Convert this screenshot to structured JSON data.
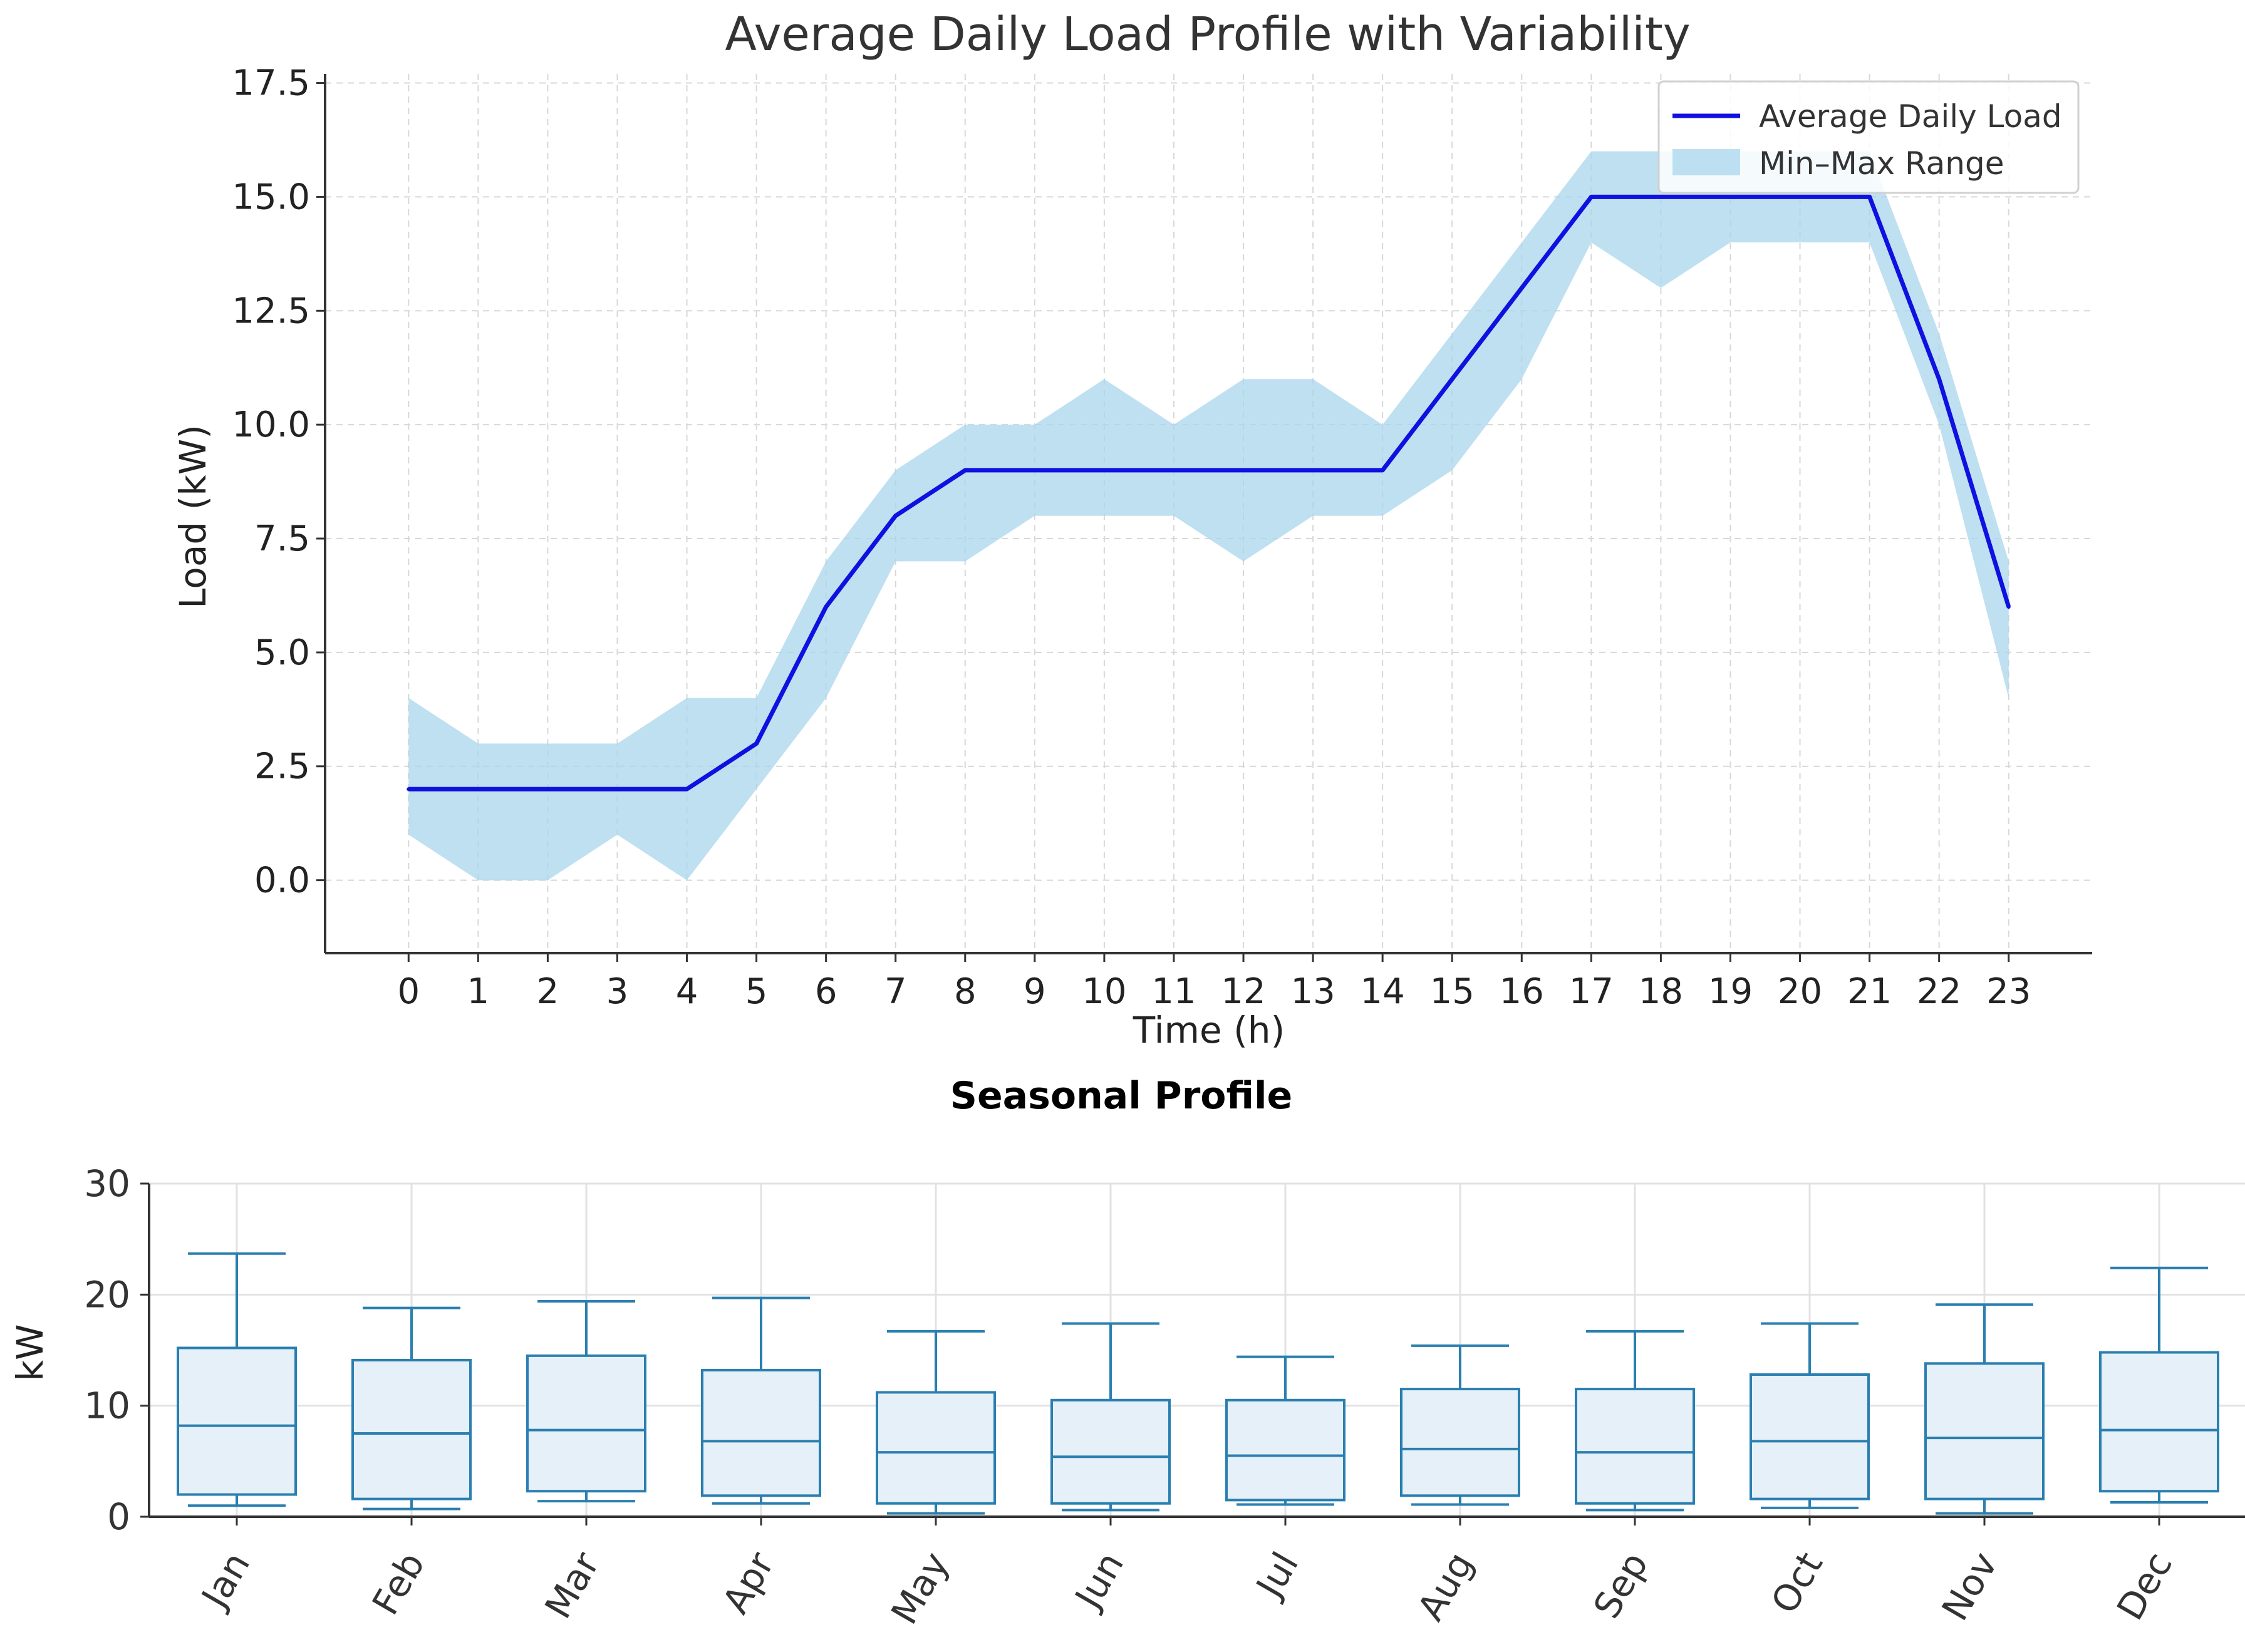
{
  "chart_data": [
    {
      "type": "line",
      "title": "Average Daily Load Profile with Variability",
      "xlabel": "Time (h)",
      "ylabel": "Load (kW)",
      "xlim": [
        -1.2,
        24.2
      ],
      "ylim": [
        -1.6,
        17.7
      ],
      "x": [
        0,
        1,
        2,
        3,
        4,
        5,
        6,
        7,
        8,
        9,
        10,
        11,
        12,
        13,
        14,
        15,
        16,
        17,
        18,
        19,
        20,
        21,
        22,
        23
      ],
      "x_tick_labels": [
        "0",
        "1",
        "2",
        "3",
        "4",
        "5",
        "6",
        "7",
        "8",
        "9",
        "10",
        "11",
        "12",
        "13",
        "14",
        "15",
        "16",
        "17",
        "18",
        "19",
        "20",
        "21",
        "22",
        "23"
      ],
      "y_ticks": [
        0.0,
        2.5,
        5.0,
        7.5,
        10.0,
        12.5,
        15.0,
        17.5
      ],
      "y_tick_labels": [
        "0.0",
        "2.5",
        "5.0",
        "7.5",
        "10.0",
        "12.5",
        "15.0",
        "17.5"
      ],
      "grid": true,
      "legend_position": "top-right",
      "series": [
        {
          "name": "Average Daily Load",
          "kind": "line",
          "color": "#1010e0",
          "values": [
            2,
            2,
            2,
            2,
            2,
            3,
            6,
            8,
            9,
            9,
            9,
            9,
            9,
            9,
            9,
            11,
            13,
            15,
            15,
            15,
            15,
            15,
            11,
            6
          ]
        },
        {
          "name": "Min–Max Range",
          "kind": "band",
          "color": "#a8d5ec",
          "min": [
            1,
            0,
            0,
            1,
            0,
            2,
            4,
            7,
            7,
            8,
            8,
            8,
            7,
            8,
            8,
            9,
            11,
            14,
            13,
            14,
            14,
            14,
            10,
            4
          ],
          "max": [
            4,
            3,
            3,
            3,
            4,
            4,
            7,
            9,
            10,
            10,
            11,
            10,
            11,
            11,
            10,
            12,
            14,
            16,
            16,
            16,
            16,
            16,
            12,
            7
          ]
        }
      ]
    },
    {
      "type": "box",
      "title": "Seasonal Profile",
      "xlabel": "",
      "ylabel": "kW",
      "ylim": [
        0,
        30
      ],
      "y_ticks": [
        0,
        10,
        20,
        30
      ],
      "y_tick_labels": [
        "0",
        "10",
        "20",
        "30"
      ],
      "grid": true,
      "color": "#2a7fb0",
      "fill": "#e6f0f8",
      "categories": [
        "Jan",
        "Feb",
        "Mar",
        "Apr",
        "May",
        "Jun",
        "Jul",
        "Aug",
        "Sep",
        "Oct",
        "Nov",
        "Dec"
      ],
      "boxes": [
        {
          "whislo": 1.0,
          "q1": 2.0,
          "median": 8.2,
          "q3": 15.2,
          "whishi": 23.7
        },
        {
          "whislo": 0.7,
          "q1": 1.6,
          "median": 7.5,
          "q3": 14.1,
          "whishi": 18.8
        },
        {
          "whislo": 1.4,
          "q1": 2.3,
          "median": 7.8,
          "q3": 14.5,
          "whishi": 19.4
        },
        {
          "whislo": 1.2,
          "q1": 1.9,
          "median": 6.8,
          "q3": 13.2,
          "whishi": 19.7
        },
        {
          "whislo": 0.3,
          "q1": 1.2,
          "median": 5.8,
          "q3": 11.2,
          "whishi": 16.7
        },
        {
          "whislo": 0.6,
          "q1": 1.2,
          "median": 5.4,
          "q3": 10.5,
          "whishi": 17.4
        },
        {
          "whislo": 1.1,
          "q1": 1.5,
          "median": 5.5,
          "q3": 10.5,
          "whishi": 14.4
        },
        {
          "whislo": 1.1,
          "q1": 1.9,
          "median": 6.1,
          "q3": 11.5,
          "whishi": 15.4
        },
        {
          "whislo": 0.6,
          "q1": 1.2,
          "median": 5.8,
          "q3": 11.5,
          "whishi": 16.7
        },
        {
          "whislo": 0.8,
          "q1": 1.6,
          "median": 6.8,
          "q3": 12.8,
          "whishi": 17.4
        },
        {
          "whislo": 0.3,
          "q1": 1.6,
          "median": 7.1,
          "q3": 13.8,
          "whishi": 19.1
        },
        {
          "whislo": 1.3,
          "q1": 2.3,
          "median": 7.8,
          "q3": 14.8,
          "whishi": 22.4
        }
      ]
    }
  ]
}
